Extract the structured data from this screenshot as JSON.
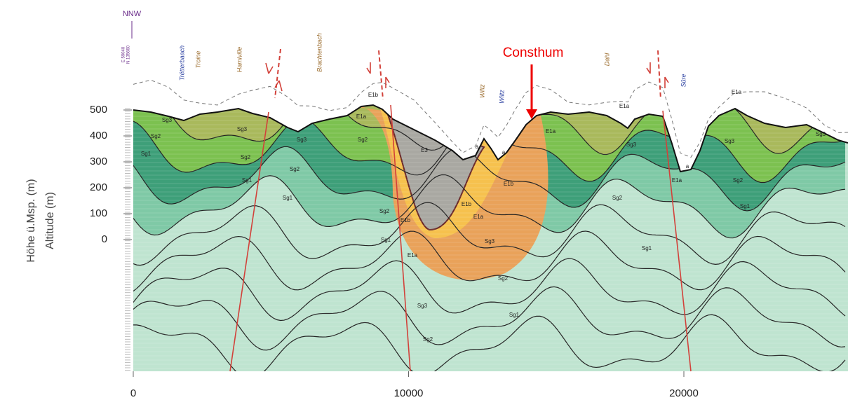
{
  "header": {
    "direction": "NNW",
    "easting": "E 59040",
    "northing": "N 135660"
  },
  "highlight": "Consthum",
  "place_labels": [
    "Trëtterbaach",
    "Troine",
    "Hamiville",
    "Brachtenbach",
    "Wiltz",
    "Wiltz",
    "Dahl",
    "Sûre"
  ],
  "unit_labels": [
    "Sg3",
    "Sg2",
    "Sg1",
    "Sg3",
    "Sg2",
    "Sg1",
    "Sg3",
    "Sg2",
    "Sg1",
    "E1a",
    "E1b",
    "Sg2",
    "E3",
    "Sg2",
    "E1b",
    "Sg1",
    "E1a",
    "E1b",
    "E1a",
    "E1b",
    "a",
    "a",
    "Sg3",
    "Sg2",
    "Sg1",
    "Sg3",
    "Sg2",
    "E1a",
    "E1a",
    "Sg3",
    "Sg2",
    "Sg1",
    "E1a",
    "a",
    "E1a",
    "Sg3",
    "Sg3",
    "Sg2",
    "Sg1"
  ],
  "axis": {
    "y_title_de": "Höhe ü.Msp. (m)",
    "y_title_en": "Altitude (m)",
    "yticks": [
      500,
      400,
      300,
      200,
      100,
      0
    ],
    "xticks": [
      0,
      10000,
      20000
    ]
  }
}
